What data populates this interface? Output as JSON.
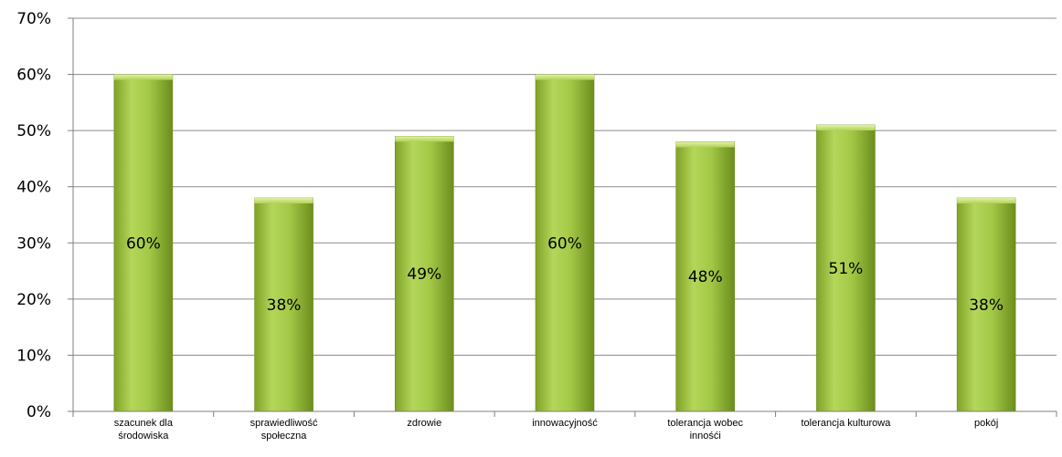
{
  "chart_data": {
    "type": "bar",
    "categories": [
      [
        "szacunek dla",
        "środowiska"
      ],
      [
        "sprawiedliwość",
        "społeczna"
      ],
      [
        "zdrowie"
      ],
      [
        "innowacyjność"
      ],
      [
        "tolerancja wobec",
        "innośći"
      ],
      [
        "tolerancja kulturowa"
      ],
      [
        "pokój"
      ]
    ],
    "values": [
      60,
      38,
      49,
      60,
      48,
      51,
      38
    ],
    "data_labels": [
      "60%",
      "38%",
      "49%",
      "60%",
      "48%",
      "51%",
      "38%"
    ],
    "ylim": [
      0,
      70
    ],
    "yticks": [
      "0%",
      "10%",
      "20%",
      "30%",
      "40%",
      "50%",
      "60%",
      "70%"
    ],
    "title": "",
    "xlabel": "",
    "ylabel": "",
    "grid": true,
    "legend": "none",
    "colors": {
      "bar_light": "#c6e07a",
      "bar_mid": "#9bc236",
      "bar_dark": "#6d8f1f",
      "grid": "#8c8c8c",
      "axis": "#7f7f7f"
    }
  }
}
